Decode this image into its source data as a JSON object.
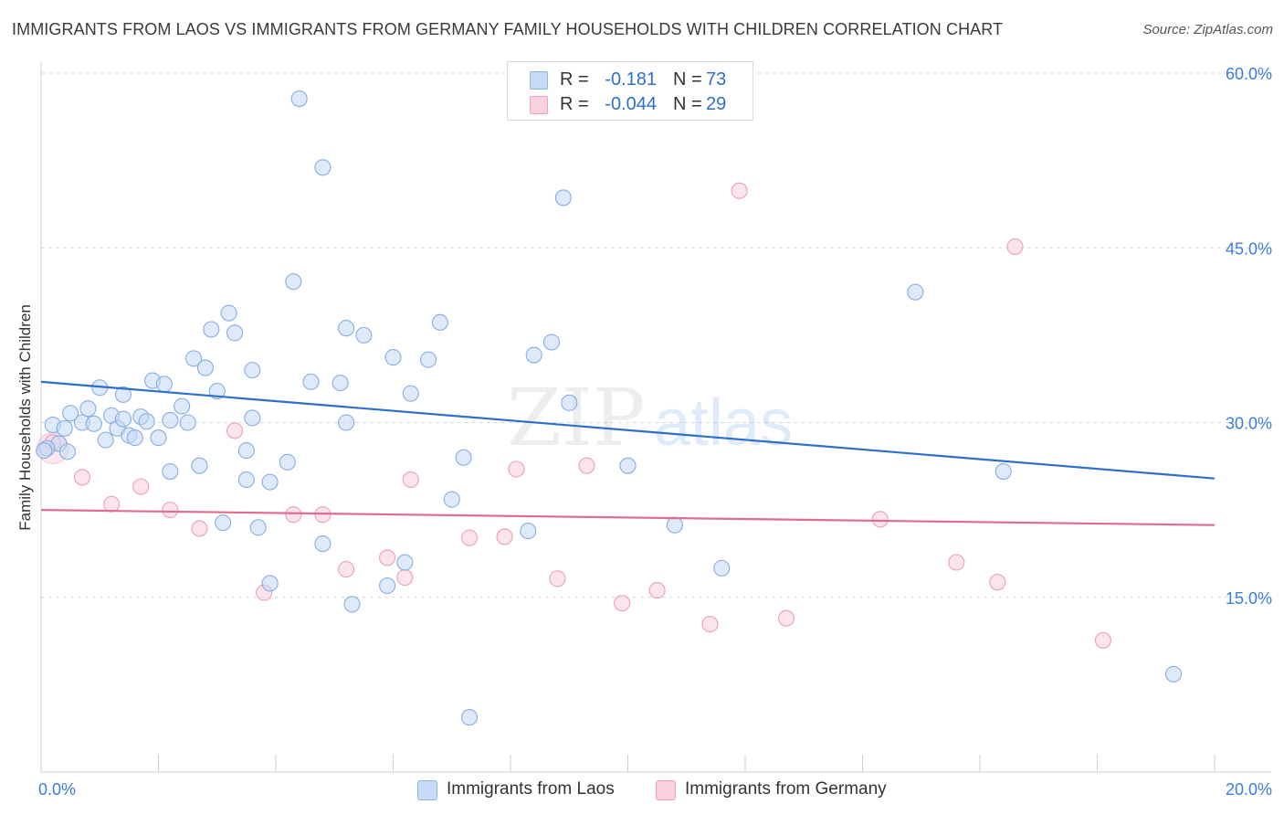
{
  "title": "IMMIGRANTS FROM LAOS VS IMMIGRANTS FROM GERMANY FAMILY HOUSEHOLDS WITH CHILDREN CORRELATION CHART",
  "source": "Source: ZipAtlas.com",
  "watermark": {
    "zip": "ZIP",
    "atlas": "atlas"
  },
  "stats": [
    {
      "r_label": "R =",
      "r_value": "-0.181",
      "n_label": "N =",
      "n_value": "73",
      "color": "#a9c8f0"
    },
    {
      "r_label": "R =",
      "r_value": "-0.044",
      "n_label": "N =",
      "n_value": "29",
      "color": "#f5b8cc"
    }
  ],
  "legend": [
    {
      "label": "Immigrants from Laos",
      "color": "#a9c8f0"
    },
    {
      "label": "Immigrants from Germany",
      "color": "#f5b8cc"
    }
  ],
  "chart_data": {
    "type": "scatter",
    "title": "IMMIGRANTS FROM LAOS VS IMMIGRANTS FROM GERMANY FAMILY HOUSEHOLDS WITH CHILDREN CORRELATION CHART",
    "xlabel": "",
    "ylabel": "Family Households with Children",
    "xlim": [
      0,
      20
    ],
    "ylim": [
      0,
      60
    ],
    "x_tick_labels": [
      "0.0%",
      "20.0%"
    ],
    "y_ticks": [
      15,
      30,
      45,
      60
    ],
    "y_tick_labels": [
      "15.0%",
      "30.0%",
      "45.0%",
      "60.0%"
    ],
    "grid": true,
    "legend_position": "bottom",
    "series": [
      {
        "name": "Immigrants from Laos",
        "color": "#a9c8f0",
        "line_color": "#2f6fcc",
        "trend": {
          "x": [
            0,
            20
          ],
          "y": [
            33.5,
            25.2
          ]
        },
        "points": [
          [
            4.4,
            57.8
          ],
          [
            4.8,
            51.9
          ],
          [
            8.9,
            49.3
          ],
          [
            14.9,
            41.2
          ],
          [
            4.3,
            42.1
          ],
          [
            3.2,
            39.4
          ],
          [
            2.9,
            38.0
          ],
          [
            3.3,
            37.7
          ],
          [
            5.2,
            38.1
          ],
          [
            5.5,
            37.5
          ],
          [
            6.8,
            38.6
          ],
          [
            8.7,
            36.9
          ],
          [
            2.6,
            35.5
          ],
          [
            6.0,
            35.6
          ],
          [
            6.6,
            35.4
          ],
          [
            8.4,
            35.8
          ],
          [
            2.8,
            34.7
          ],
          [
            3.6,
            34.5
          ],
          [
            1.9,
            33.6
          ],
          [
            2.1,
            33.3
          ],
          [
            4.6,
            33.5
          ],
          [
            5.1,
            33.4
          ],
          [
            1.0,
            33.0
          ],
          [
            3.0,
            32.7
          ],
          [
            6.3,
            32.5
          ],
          [
            1.4,
            32.4
          ],
          [
            0.8,
            31.2
          ],
          [
            2.4,
            31.4
          ],
          [
            9.0,
            31.7
          ],
          [
            0.5,
            30.8
          ],
          [
            1.2,
            30.6
          ],
          [
            1.7,
            30.5
          ],
          [
            2.2,
            30.2
          ],
          [
            3.6,
            30.4
          ],
          [
            0.7,
            30.0
          ],
          [
            0.9,
            29.9
          ],
          [
            1.8,
            30.1
          ],
          [
            2.5,
            30.0
          ],
          [
            0.2,
            29.8
          ],
          [
            0.4,
            29.5
          ],
          [
            1.3,
            29.5
          ],
          [
            5.2,
            30.0
          ],
          [
            1.5,
            28.9
          ],
          [
            1.6,
            28.7
          ],
          [
            2.0,
            28.7
          ],
          [
            1.1,
            28.5
          ],
          [
            0.3,
            28.2
          ],
          [
            0.1,
            27.8
          ],
          [
            0.45,
            27.5
          ],
          [
            3.5,
            27.6
          ],
          [
            7.2,
            27.0
          ],
          [
            4.2,
            26.6
          ],
          [
            2.7,
            26.3
          ],
          [
            10.0,
            26.3
          ],
          [
            16.4,
            25.8
          ],
          [
            2.2,
            25.8
          ],
          [
            3.5,
            25.1
          ],
          [
            3.9,
            24.9
          ],
          [
            7.0,
            23.4
          ],
          [
            3.1,
            21.4
          ],
          [
            3.7,
            21.0
          ],
          [
            8.3,
            20.7
          ],
          [
            10.8,
            21.2
          ],
          [
            4.8,
            19.6
          ],
          [
            6.2,
            18.0
          ],
          [
            11.6,
            17.5
          ],
          [
            3.9,
            16.2
          ],
          [
            5.9,
            16.0
          ],
          [
            5.3,
            14.4
          ],
          [
            19.3,
            8.4
          ],
          [
            7.3,
            4.7
          ],
          [
            0.05,
            27.6
          ],
          [
            1.4,
            30.3
          ]
        ]
      },
      {
        "name": "Immigrants from Germany",
        "color": "#f5b8cc",
        "line_color": "#e06c92",
        "trend": {
          "x": [
            0,
            20
          ],
          "y": [
            22.5,
            21.2
          ]
        },
        "points": [
          [
            11.9,
            49.9
          ],
          [
            16.6,
            45.1
          ],
          [
            0.2,
            28.3
          ],
          [
            3.3,
            29.3
          ],
          [
            9.3,
            26.3
          ],
          [
            8.1,
            26.0
          ],
          [
            0.7,
            25.3
          ],
          [
            6.3,
            25.1
          ],
          [
            1.7,
            24.5
          ],
          [
            1.2,
            23.0
          ],
          [
            2.2,
            22.5
          ],
          [
            4.3,
            22.1
          ],
          [
            4.8,
            22.1
          ],
          [
            14.3,
            21.7
          ],
          [
            2.7,
            20.9
          ],
          [
            7.3,
            20.1
          ],
          [
            7.9,
            20.2
          ],
          [
            5.9,
            18.4
          ],
          [
            15.6,
            18.0
          ],
          [
            5.2,
            17.4
          ],
          [
            6.2,
            16.7
          ],
          [
            8.8,
            16.6
          ],
          [
            16.3,
            16.3
          ],
          [
            10.5,
            15.6
          ],
          [
            3.8,
            15.4
          ],
          [
            9.9,
            14.5
          ],
          [
            12.7,
            13.2
          ],
          [
            11.4,
            12.7
          ],
          [
            18.1,
            11.3
          ]
        ]
      }
    ]
  }
}
